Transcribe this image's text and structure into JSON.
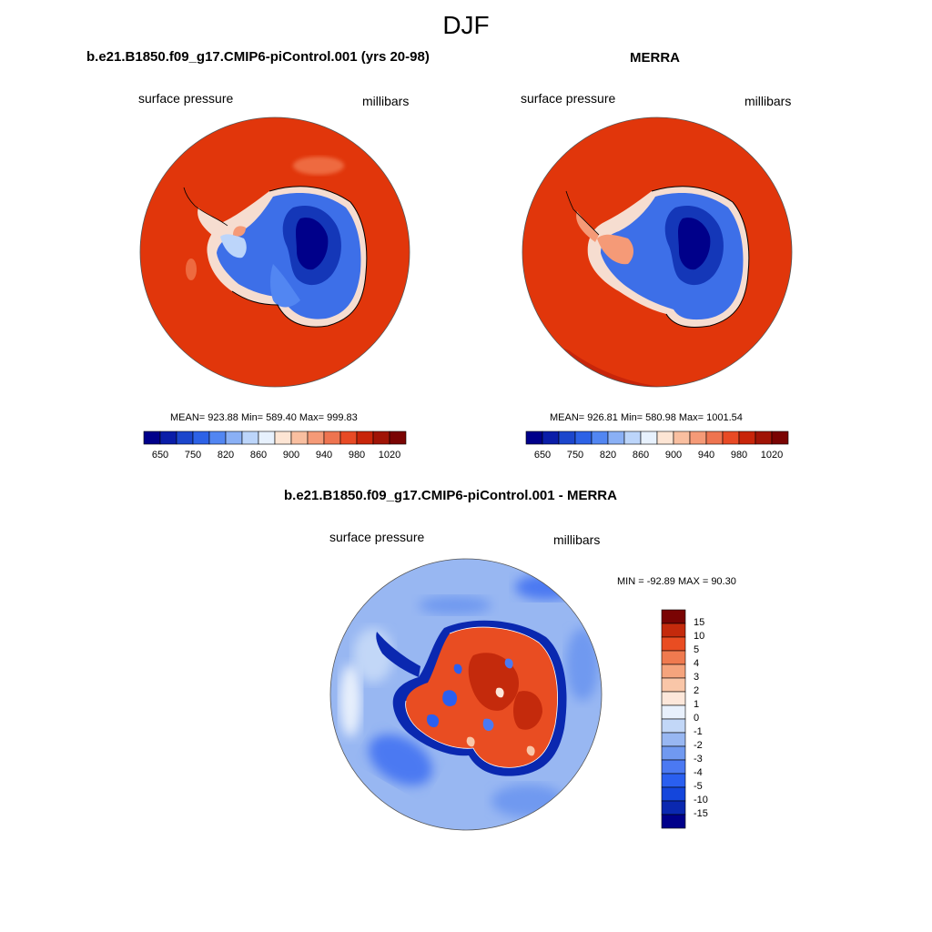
{
  "main_title": "DJF",
  "colors": {
    "ocean": "#e1360b",
    "coast": "#000000",
    "panel_scale": [
      "#00008a",
      "#0a1da8",
      "#1c46cc",
      "#2d62e6",
      "#5286f2",
      "#8ab0f5",
      "#bcd5fa",
      "#e7f1fd",
      "#fde5d4",
      "#f9bfa0",
      "#f59a77",
      "#ee7450",
      "#e84a25",
      "#c8250a",
      "#a01406",
      "#7a0403"
    ],
    "diff_scale": [
      "#00008a",
      "#0a28b0",
      "#1446dc",
      "#2a5ff0",
      "#4b79f2",
      "#7099f0",
      "#98b7f2",
      "#c2d7f7",
      "#e8f0fc",
      "#fde7da",
      "#f9c6a8",
      "#f5a47d",
      "#ef7a4f",
      "#e94d22",
      "#c42a0c",
      "#7a0403"
    ]
  },
  "panels": [
    {
      "title": "b.e21.B1850.f09_g17.CMIP6-piControl.001 (yrs 20-98)",
      "left_label": "surface pressure",
      "right_label": "millibars",
      "stats": "MEAN= 923.88  Min= 589.40  Max= 999.83",
      "colorbar_labels": [
        "650",
        "750",
        "820",
        "860",
        "900",
        "940",
        "980",
        "1020"
      ]
    },
    {
      "title": "MERRA",
      "left_label": "surface pressure",
      "right_label": "millibars",
      "stats": "MEAN= 926.81  Min= 580.98  Max= 1001.54",
      "colorbar_labels": [
        "650",
        "750",
        "820",
        "860",
        "900",
        "940",
        "980",
        "1020"
      ]
    }
  ],
  "diff_panel": {
    "title": "b.e21.B1850.f09_g17.CMIP6-piControl.001 - MERRA",
    "left_label": "surface pressure",
    "right_label": "millibars",
    "stats": "MIN = -92.89 MAX =  90.30",
    "colorbar_labels": [
      "15",
      "10",
      "5",
      "4",
      "3",
      "2",
      "1",
      "0",
      "-1",
      "-2",
      "-3",
      "-4",
      "-5",
      "-10",
      "-15"
    ]
  }
}
